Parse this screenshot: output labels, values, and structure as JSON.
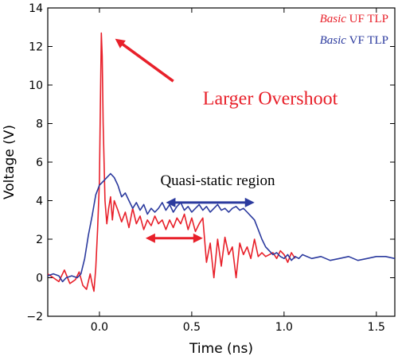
{
  "chart_data": {
    "type": "line",
    "xlabel": "Time (ns)",
    "ylabel": "Voltage (V)",
    "xlim": [
      -0.28,
      1.6
    ],
    "ylim": [
      -2,
      14
    ],
    "xticks": [
      0.0,
      0.5,
      1.0,
      1.5
    ],
    "xtick_labels": [
      "0.0",
      "0.5",
      "1.0",
      "1.5"
    ],
    "yticks": [
      -2,
      0,
      2,
      4,
      6,
      8,
      10,
      12,
      14
    ],
    "ytick_labels": [
      "−2",
      "0",
      "2",
      "4",
      "6",
      "8",
      "10",
      "12",
      "14"
    ],
    "grid": false,
    "legend": {
      "placement": "top-right",
      "entries": [
        {
          "italic": "Basic",
          "rest": "UF TLP",
          "color": "#e8202a"
        },
        {
          "italic": "Basic",
          "rest": "VF TLP",
          "color": "#2b3a9e"
        }
      ]
    },
    "series": [
      {
        "color": "#e8202a",
        "x": [
          -0.28,
          -0.25,
          -0.22,
          -0.19,
          -0.16,
          -0.13,
          -0.11,
          -0.09,
          -0.07,
          -0.05,
          -0.04,
          -0.03,
          -0.02,
          -0.01,
          0.0,
          0.005,
          0.01,
          0.015,
          0.02,
          0.03,
          0.04,
          0.05,
          0.06,
          0.07,
          0.08,
          0.1,
          0.12,
          0.14,
          0.16,
          0.18,
          0.2,
          0.22,
          0.24,
          0.26,
          0.28,
          0.3,
          0.32,
          0.34,
          0.36,
          0.38,
          0.4,
          0.42,
          0.44,
          0.46,
          0.48,
          0.5,
          0.52,
          0.54,
          0.56,
          0.58,
          0.6,
          0.62,
          0.64,
          0.66,
          0.68,
          0.7,
          0.72,
          0.74,
          0.76,
          0.78,
          0.8,
          0.82,
          0.84,
          0.86,
          0.88,
          0.9,
          0.92,
          0.94,
          0.96,
          0.98,
          1.0,
          1.02,
          1.04,
          1.06
        ],
        "y": [
          0.2,
          0.0,
          -0.2,
          0.4,
          -0.3,
          -0.1,
          0.3,
          -0.4,
          -0.6,
          0.2,
          -0.3,
          -0.7,
          0.5,
          2.5,
          5.0,
          9.0,
          12.7,
          11.5,
          8.0,
          4.0,
          2.8,
          3.6,
          4.2,
          3.0,
          4.0,
          3.5,
          2.9,
          3.4,
          2.6,
          3.6,
          2.8,
          3.2,
          2.5,
          3.0,
          2.7,
          3.2,
          2.8,
          3.0,
          2.5,
          3.0,
          2.6,
          3.1,
          2.8,
          3.3,
          2.5,
          3.1,
          2.4,
          2.8,
          3.1,
          0.8,
          1.8,
          0.0,
          2.0,
          0.6,
          2.1,
          1.2,
          1.6,
          0.0,
          1.8,
          1.2,
          1.6,
          1.0,
          2.0,
          1.1,
          1.3,
          1.1,
          1.2,
          1.3,
          1.0,
          1.4,
          1.2,
          0.8,
          1.3,
          1.0
        ]
      },
      {
        "color": "#2b3a9e",
        "x": [
          -0.28,
          -0.25,
          -0.22,
          -0.2,
          -0.18,
          -0.15,
          -0.12,
          -0.1,
          -0.08,
          -0.06,
          -0.04,
          -0.02,
          0.0,
          0.02,
          0.04,
          0.06,
          0.08,
          0.1,
          0.12,
          0.14,
          0.16,
          0.18,
          0.2,
          0.22,
          0.24,
          0.26,
          0.28,
          0.3,
          0.32,
          0.34,
          0.36,
          0.38,
          0.4,
          0.42,
          0.44,
          0.46,
          0.48,
          0.5,
          0.52,
          0.54,
          0.56,
          0.58,
          0.6,
          0.62,
          0.64,
          0.66,
          0.68,
          0.7,
          0.72,
          0.74,
          0.76,
          0.78,
          0.8,
          0.82,
          0.84,
          0.86,
          0.88,
          0.9,
          0.92,
          0.94,
          0.96,
          0.98,
          1.0,
          1.02,
          1.04,
          1.06,
          1.08,
          1.1,
          1.15,
          1.2,
          1.25,
          1.3,
          1.35,
          1.4,
          1.45,
          1.5,
          1.55,
          1.6
        ],
        "y": [
          0.1,
          0.2,
          0.1,
          -0.2,
          0.0,
          0.1,
          0.0,
          0.2,
          1.0,
          2.2,
          3.2,
          4.3,
          4.8,
          5.0,
          5.2,
          5.4,
          5.2,
          4.8,
          4.2,
          4.4,
          4.0,
          3.6,
          3.9,
          3.5,
          3.8,
          3.3,
          3.6,
          3.4,
          3.6,
          3.9,
          3.5,
          3.8,
          3.4,
          3.7,
          3.9,
          3.5,
          3.7,
          3.4,
          3.6,
          3.8,
          3.5,
          3.7,
          3.4,
          3.6,
          3.8,
          3.5,
          3.6,
          3.4,
          3.6,
          3.7,
          3.5,
          3.6,
          3.4,
          3.2,
          3.0,
          2.5,
          2.0,
          1.6,
          1.4,
          1.2,
          1.3,
          1.1,
          1.0,
          1.2,
          0.9,
          1.1,
          1.0,
          1.2,
          1.0,
          1.1,
          0.9,
          1.0,
          1.1,
          0.9,
          1.0,
          1.1,
          1.1,
          1.0
        ]
      }
    ],
    "annotations": [
      {
        "text": "Larger Overshoot",
        "color": "#e8202a",
        "x": 0.56,
        "y": 9.0,
        "anchor": "start",
        "class": "annot-big"
      },
      {
        "text": "Quasi-static region",
        "color": "#000000",
        "x": 0.33,
        "y": 4.8,
        "anchor": "start",
        "class": "annot-mid"
      }
    ],
    "arrows": [
      {
        "color": "#e8202a",
        "from": [
          0.4,
          10.2
        ],
        "to": [
          0.085,
          12.4
        ],
        "heads": "end",
        "width": 3.5
      },
      {
        "color": "#2b3a9e",
        "from": [
          0.36,
          3.9
        ],
        "to": [
          0.84,
          3.9
        ],
        "heads": "both",
        "width": 3.0
      },
      {
        "color": "#e8202a",
        "from": [
          0.25,
          2.05
        ],
        "to": [
          0.56,
          2.05
        ],
        "heads": "both",
        "width": 3.0
      }
    ]
  }
}
